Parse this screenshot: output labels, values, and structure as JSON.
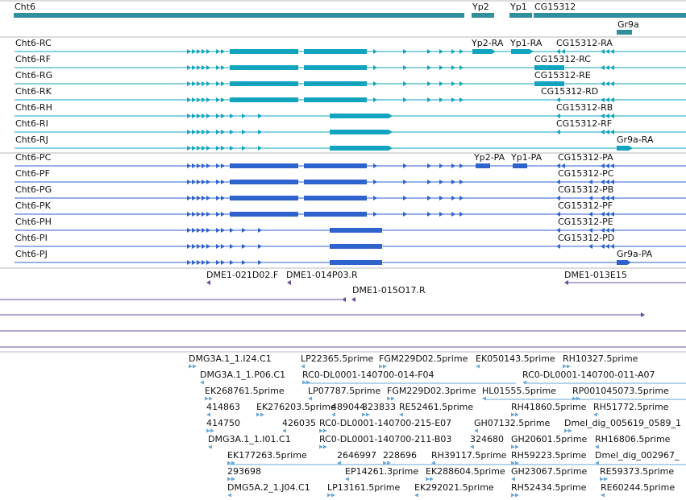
{
  "colors": {
    "gene": "#2f8f9a",
    "mrna": "#12a4bf",
    "cds": "#2e62cc",
    "probe": "#6a4c9c",
    "est": "#6aa8d8",
    "divider": "#b8b8b8"
  },
  "gene_track": {
    "features": [
      {
        "label": "Cht6",
        "start": 17,
        "end": 576
      },
      {
        "label": "Yp2",
        "start": 585,
        "end": 613
      },
      {
        "label": "Yp1",
        "start": 632,
        "end": 660
      },
      {
        "label": "CG15312",
        "start": 662,
        "end": 851
      },
      {
        "label": "Gr9a",
        "start": 765,
        "end": 784
      }
    ]
  },
  "mrna_track": {
    "rows": [
      {
        "label": "Cht6-RC",
        "extra": [
          {
            "label": "Yp2-RA"
          },
          {
            "label": "Yp1-RA"
          },
          {
            "label": "CG15312-RA"
          }
        ]
      },
      {
        "label": "Cht6-RF",
        "extra": [
          {
            "label": "CG15312-RC"
          }
        ]
      },
      {
        "label": "Cht6-RG",
        "extra": [
          {
            "label": "CG15312-RE"
          }
        ]
      },
      {
        "label": "Cht6-RK",
        "extra": [
          {
            "label": "CG15312-RD"
          }
        ]
      },
      {
        "label": "Cht6-RH",
        "extra": [
          {
            "label": "CG15312-RB"
          }
        ]
      },
      {
        "label": "Cht6-RI",
        "extra": [
          {
            "label": "CG15312-RF"
          }
        ]
      },
      {
        "label": "Cht6-RJ",
        "extra": [
          {
            "label": "Gr9a-RA"
          }
        ]
      }
    ]
  },
  "cds_track": {
    "rows": [
      {
        "label": "Cht6-PC",
        "extra": [
          {
            "label": "Yp2-PA"
          },
          {
            "label": "Yp1-PA"
          },
          {
            "label": "CG15312-PA"
          }
        ]
      },
      {
        "label": "Cht6-PF",
        "extra": [
          {
            "label": "CG15312-PC"
          }
        ]
      },
      {
        "label": "Cht6-PG",
        "extra": [
          {
            "label": "CG15312-PB"
          }
        ]
      },
      {
        "label": "Cht6-PK",
        "extra": [
          {
            "label": "CG15312-PF"
          }
        ]
      },
      {
        "label": "Cht6-PH",
        "extra": [
          {
            "label": "CG15312-PE"
          }
        ]
      },
      {
        "label": "Cht6-PI",
        "extra": [
          {
            "label": "CG15312-PD"
          }
        ]
      },
      {
        "label": "Cht6-PJ",
        "extra": [
          {
            "label": "Gr9a-PA"
          }
        ]
      }
    ]
  },
  "probe_track": {
    "labels": [
      "DME1-021D02.F",
      "DME1-014P03.R",
      "DME1-013E15",
      "DME1-015O17.R"
    ]
  },
  "est_track": {
    "labels": [
      "DMG3A.1_1.I24.C1",
      "LP22365.5prime",
      "FGM229D02.5prime",
      "EK050143.5prime",
      "RH10327.5prime",
      "DMG3A.1_1.P06.C1",
      "RC0-DL0001-140700-014-F04",
      "RC0-DL0001-140700-011-A07",
      "EK268761.5prime",
      "LP07787.5prime",
      "FGM229D02.3prime",
      "HL01555.5prime",
      "RP001045073.5prime",
      "414863",
      "EK276203.5prime",
      "489044",
      "323833",
      "RE52461.5prime",
      "RH41860.5prime",
      "RH51772.5prime",
      "414750",
      "426035",
      "RC0-DL0001-140700-215-E07",
      "GH07132.5prime",
      "Dmel_dig_005619_0589_1",
      "DMG3A.1_1.I01.C1",
      "RC0-DL0001-140700-211-B03",
      "324680",
      "GH20601.5prime",
      "RH16806.5prime",
      "EK177263.5prime",
      "2646997",
      "228696",
      "RH39117.5prime",
      "RH59223.5prime",
      "Dmel_dig_002967_",
      "293698",
      "EP14261.3prime",
      "EK288604.5prime",
      "GH23067.5prime",
      "RE59373.5prime",
      "DMG5A.2_1.J04.C1",
      "LP13161.5prime",
      "EK292021.5prime",
      "RH52434.5prime",
      "RE60244.5prime"
    ]
  }
}
